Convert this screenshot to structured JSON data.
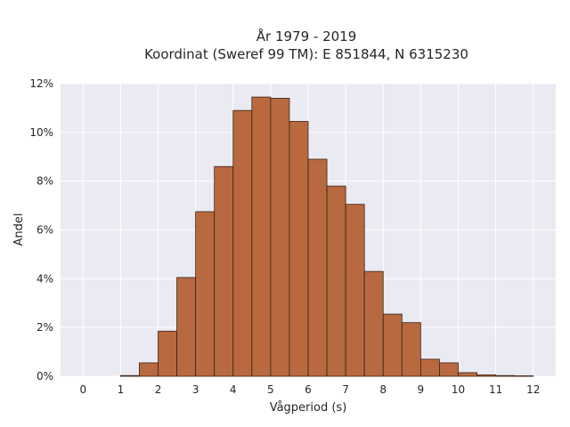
{
  "chart_data": {
    "type": "bar",
    "title_line1": "År 1979 - 2019",
    "title_line2": "Koordinat (Sweref 99 TM): E 851844, N 6315230",
    "xlabel": "Vågperiod (s)",
    "ylabel": "Andel",
    "xlim": [
      -0.6,
      12.6
    ],
    "ylim": [
      0,
      12
    ],
    "x_ticks": [
      "0",
      "1",
      "2",
      "3",
      "4",
      "5",
      "6",
      "7",
      "8",
      "9",
      "10",
      "11",
      "12"
    ],
    "y_ticks": [
      "0%",
      "2%",
      "4%",
      "6%",
      "8%",
      "10%",
      "12%"
    ],
    "y_tick_values": [
      0,
      2,
      4,
      6,
      8,
      10,
      12
    ],
    "grid": true,
    "bar_width": 0.5,
    "bar_color": "#b8693f",
    "plot_background": "#eaeaf2",
    "bins": [
      {
        "left": 1.0,
        "value": 0.03
      },
      {
        "left": 1.5,
        "value": 0.55
      },
      {
        "left": 2.0,
        "value": 1.85
      },
      {
        "left": 2.5,
        "value": 4.05
      },
      {
        "left": 3.0,
        "value": 6.75
      },
      {
        "left": 3.5,
        "value": 8.6
      },
      {
        "left": 4.0,
        "value": 10.9
      },
      {
        "left": 4.5,
        "value": 11.45
      },
      {
        "left": 5.0,
        "value": 11.4
      },
      {
        "left": 5.5,
        "value": 10.45
      },
      {
        "left": 6.0,
        "value": 8.9
      },
      {
        "left": 6.5,
        "value": 7.8
      },
      {
        "left": 7.0,
        "value": 7.05
      },
      {
        "left": 7.5,
        "value": 4.3
      },
      {
        "left": 8.0,
        "value": 2.55
      },
      {
        "left": 8.5,
        "value": 2.2
      },
      {
        "left": 9.0,
        "value": 0.7
      },
      {
        "left": 9.5,
        "value": 0.55
      },
      {
        "left": 10.0,
        "value": 0.15
      },
      {
        "left": 10.5,
        "value": 0.06
      },
      {
        "left": 11.0,
        "value": 0.03
      },
      {
        "left": 11.5,
        "value": 0.02
      }
    ]
  }
}
